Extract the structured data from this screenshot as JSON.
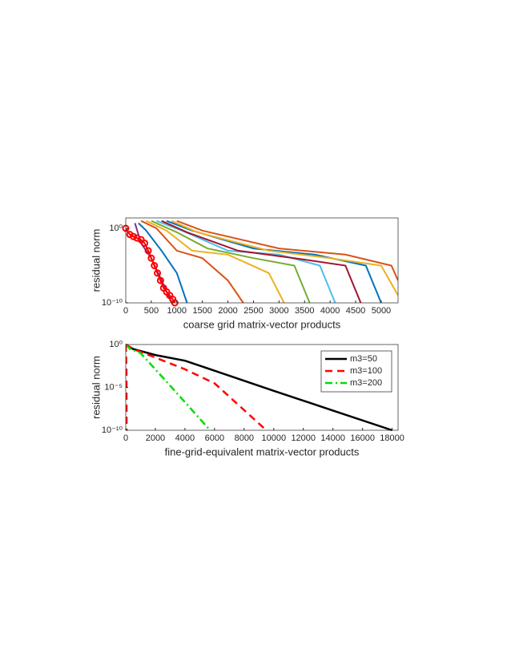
{
  "chart_data": [
    {
      "type": "line",
      "xlabel": "coarse grid matrix-vector products",
      "ylabel": "residual norm",
      "log_y": true,
      "xlim": [
        0,
        5330
      ],
      "ylim": [
        1e-10,
        25
      ],
      "xticks": [
        0,
        500,
        1000,
        1500,
        2000,
        2500,
        3000,
        3500,
        4000,
        4500,
        5000
      ],
      "yticks": [
        {
          "value": 1e-10,
          "label": "10⁻¹⁰"
        },
        {
          "value": 1,
          "label": "10⁰"
        }
      ],
      "series": [
        {
          "color": "#7E2F8E",
          "x": [
            180,
            300,
            500,
            700,
            900
          ],
          "values": [
            5,
            0.01,
            0.0001,
            1e-07,
            1e-10
          ]
        },
        {
          "color": "#0072BD",
          "x": [
            250,
            400,
            700,
            1000,
            1200
          ],
          "values": [
            5,
            0.5,
            0.001,
            1e-06,
            1e-10
          ]
        },
        {
          "color": "#D95319",
          "x": [
            300,
            600,
            1000,
            1500,
            2000,
            2300
          ],
          "values": [
            10,
            1,
            0.001,
            0.0001,
            1e-07,
            1e-10
          ]
        },
        {
          "color": "#EDB120",
          "x": [
            400,
            800,
            1300,
            2000,
            2800,
            3100
          ],
          "values": [
            10,
            0.5,
            0.001,
            0.0003,
            1e-06,
            1e-10
          ]
        },
        {
          "color": "#77AC30",
          "x": [
            500,
            1000,
            1600,
            2500,
            3300,
            3600
          ],
          "values": [
            10,
            0.3,
            0.002,
            0.0001,
            1e-05,
            1e-10
          ]
        },
        {
          "color": "#4DBEEE",
          "x": [
            600,
            1100,
            2000,
            3000,
            3800,
            4100
          ],
          "values": [
            10,
            0.5,
            0.001,
            0.0003,
            1e-05,
            1e-10
          ]
        },
        {
          "color": "#A2142F",
          "x": [
            700,
            1200,
            2200,
            3300,
            4300,
            4600
          ],
          "values": [
            10,
            0.3,
            0.001,
            0.0001,
            1e-05,
            1e-10
          ]
        },
        {
          "color": "#0072BD",
          "x": [
            800,
            1300,
            2500,
            3700,
            4700,
            5000
          ],
          "values": [
            10,
            0.5,
            0.002,
            0.0003,
            1e-05,
            1e-10
          ]
        },
        {
          "color": "#EDB120",
          "x": [
            900,
            1400,
            2800,
            4000,
            5000,
            5330
          ],
          "values": [
            10,
            0.3,
            0.001,
            0.0001,
            1e-05,
            1e-09
          ]
        },
        {
          "color": "#D95319",
          "x": [
            1000,
            1500,
            3000,
            4300,
            5200,
            5330
          ],
          "values": [
            10,
            0.5,
            0.002,
            0.0003,
            1e-05,
            1e-07
          ]
        },
        {
          "color": "#FF0000",
          "marker": "o",
          "x": [
            0,
            80,
            150,
            220,
            300,
            370,
            440,
            500,
            560,
            620,
            680,
            740,
            800,
            860,
            920,
            960
          ],
          "values": [
            1,
            0.15,
            0.08,
            0.05,
            0.03,
            0.01,
            0.001,
            0.0001,
            1e-05,
            1e-06,
            1e-07,
            1e-08,
            3e-09,
            1e-09,
            3e-10,
            1e-10
          ]
        }
      ]
    },
    {
      "type": "line",
      "xlabel": "fine-grid-equivalent matrix-vector products",
      "ylabel": "residual norm",
      "log_y": true,
      "xlim": [
        0,
        18400
      ],
      "ylim": [
        1e-10,
        1
      ],
      "xticks": [
        0,
        2000,
        4000,
        6000,
        8000,
        10000,
        12000,
        14000,
        16000,
        18000
      ],
      "yticks": [
        {
          "value": 1e-10,
          "label": "10⁻¹⁰"
        },
        {
          "value": 1e-05,
          "label": "10⁻⁵"
        },
        {
          "value": 1,
          "label": "10⁰"
        }
      ],
      "legend": "northeast",
      "series": [
        {
          "name": "m3=50",
          "color": "#000000",
          "style": "solid",
          "x": [
            0,
            500,
            2000,
            4000,
            6000,
            10000,
            14000,
            18000
          ],
          "values": [
            1,
            0.3,
            0.06,
            0.013,
            0.00087,
            4e-06,
            2e-08,
            1e-10
          ]
        },
        {
          "name": "m3=100",
          "color": "#FF0000",
          "style": "dashed",
          "x": [
            0,
            500,
            2000,
            4000,
            6000,
            9500
          ],
          "values": [
            1,
            0.3,
            0.03,
            0.0013,
            3e-05,
            1e-10
          ]
        },
        {
          "name": "m3=200",
          "color": "#00DD00",
          "style": "dashdot",
          "x": [
            0,
            300,
            1000,
            3000,
            5700
          ],
          "values": [
            1,
            0.3,
            0.1,
            1.6e-05,
            1e-10
          ]
        },
        {
          "color": "#FF0000",
          "style": "dashed",
          "x": [
            0,
            50,
            60
          ],
          "values": [
            1,
            0.001,
            1e-10
          ]
        }
      ]
    }
  ]
}
